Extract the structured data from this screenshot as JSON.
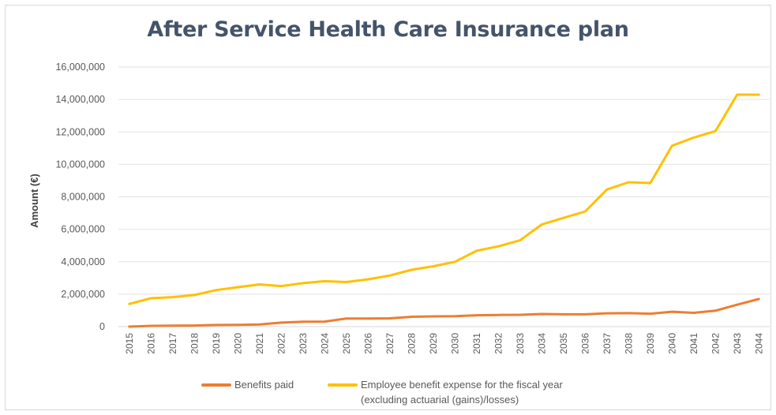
{
  "chart_data": {
    "type": "line",
    "title": "After Service Health Care Insurance plan",
    "ylabel": "Amount (€)",
    "xlabel": "",
    "ylim": [
      0,
      16000000
    ],
    "yticks": [
      "0",
      "2,000,000",
      "4,000,000",
      "6,000,000",
      "8,000,000",
      "10,000,000",
      "12,000,000",
      "14,000,000",
      "16,000,000"
    ],
    "ytick_values": [
      0,
      2000000,
      4000000,
      6000000,
      8000000,
      10000000,
      12000000,
      14000000,
      16000000
    ],
    "grid": true,
    "legend_position": "bottom",
    "x": [
      "2015",
      "2016",
      "2017",
      "2018",
      "2019",
      "2020",
      "2021",
      "2022",
      "2023",
      "2024",
      "2025",
      "2026",
      "2027",
      "2028",
      "2029",
      "2030",
      "2031",
      "2032",
      "2033",
      "2034",
      "2035",
      "2036",
      "2037",
      "2038",
      "2039",
      "2040",
      "2041",
      "2042",
      "2043",
      "2044"
    ],
    "series": [
      {
        "name": "Benefits paid",
        "color": "#ed7d31",
        "values": [
          0,
          50000,
          60000,
          70000,
          100000,
          110000,
          130000,
          250000,
          300000,
          310000,
          500000,
          500000,
          510000,
          610000,
          630000,
          640000,
          700000,
          720000,
          730000,
          780000,
          760000,
          760000,
          820000,
          830000,
          800000,
          920000,
          850000,
          980000,
          1350000,
          1700000
        ]
      },
      {
        "name": "Employee benefit expense for the fiscal year (excluding actuarial (gains)/losses)",
        "name_lines": [
          "Employee benefit expense for the fiscal year",
          "(excluding actuarial (gains)/losses)"
        ],
        "color": "#ffc000",
        "values": [
          1400000,
          1750000,
          1820000,
          1950000,
          2250000,
          2430000,
          2600000,
          2500000,
          2680000,
          2800000,
          2750000,
          2920000,
          3150000,
          3500000,
          3720000,
          4000000,
          4680000,
          4950000,
          5320000,
          6300000,
          6700000,
          7100000,
          8450000,
          8900000,
          8850000,
          11150000,
          11650000,
          12050000,
          14300000,
          14300000
        ]
      }
    ]
  }
}
